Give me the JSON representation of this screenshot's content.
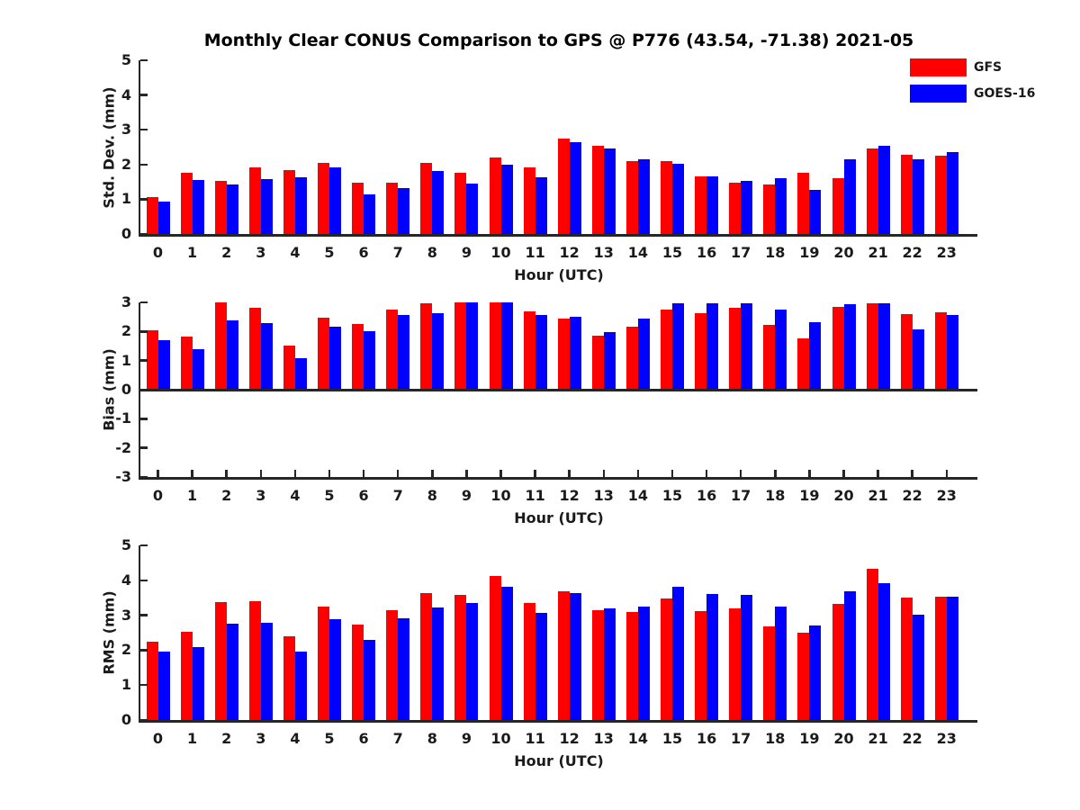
{
  "title": "Monthly Clear CONUS Comparison to GPS @ P776 (43.54, -71.38) 2021-05",
  "legend": {
    "position": "top-right",
    "entries": [
      {
        "label": "GFS",
        "color": "#ff0000"
      },
      {
        "label": "GOES-16",
        "color": "#0000ff"
      }
    ]
  },
  "colors": {
    "gfs": "#ff0000",
    "goes16": "#0000ff",
    "axis": "#262626",
    "title_text": "#000000",
    "background": "#ffffff"
  },
  "chart_data": [
    {
      "type": "bar",
      "ylabel": "Std. Dev. (mm)",
      "xlabel": "Hour (UTC)",
      "ylim": [
        0,
        5
      ],
      "yticks": [
        0,
        1,
        2,
        3,
        4,
        5
      ],
      "grid": false,
      "categories": [
        "0",
        "1",
        "2",
        "3",
        "4",
        "5",
        "6",
        "7",
        "8",
        "9",
        "10",
        "11",
        "12",
        "13",
        "14",
        "15",
        "16",
        "17",
        "18",
        "19",
        "20",
        "21",
        "22",
        "23"
      ],
      "series": [
        {
          "name": "GFS",
          "color": "#ff0000",
          "values": [
            1.05,
            1.75,
            1.52,
            1.93,
            1.85,
            2.05,
            1.47,
            1.48,
            2.05,
            1.75,
            2.2,
            1.92,
            2.75,
            2.53,
            2.1,
            2.1,
            1.65,
            1.47,
            1.42,
            1.76,
            1.6,
            2.46,
            2.28,
            2.26
          ]
        },
        {
          "name": "GOES-16",
          "color": "#0000ff",
          "values": [
            0.92,
            1.55,
            1.42,
            1.57,
            1.62,
            1.93,
            1.13,
            1.32,
            1.82,
            1.44,
            2.0,
            1.62,
            2.64,
            2.45,
            2.14,
            2.02,
            1.66,
            1.53,
            1.6,
            1.27,
            2.15,
            2.54,
            2.15,
            2.36
          ]
        }
      ]
    },
    {
      "type": "bar",
      "ylabel": "Bias (mm)",
      "xlabel": "Hour (UTC)",
      "ylim": [
        -3,
        3
      ],
      "yticks": [
        -3,
        -2,
        -1,
        0,
        1,
        2,
        3
      ],
      "grid": false,
      "categories": [
        "0",
        "1",
        "2",
        "3",
        "4",
        "5",
        "6",
        "7",
        "8",
        "9",
        "10",
        "11",
        "12",
        "13",
        "14",
        "15",
        "16",
        "17",
        "18",
        "19",
        "20",
        "21",
        "22",
        "23"
      ],
      "series": [
        {
          "name": "GFS",
          "color": "#ff0000",
          "values": [
            2.05,
            1.83,
            3.0,
            2.8,
            1.51,
            2.48,
            2.27,
            2.76,
            2.97,
            3.0,
            3.0,
            2.68,
            2.43,
            1.85,
            2.18,
            2.76,
            2.62,
            2.82,
            2.24,
            1.75,
            2.85,
            2.98,
            2.6,
            2.66
          ]
        },
        {
          "name": "GOES-16",
          "color": "#0000ff",
          "values": [
            1.7,
            1.38,
            2.39,
            2.28,
            1.07,
            2.15,
            2.0,
            2.58,
            2.64,
            3.0,
            3.0,
            2.56,
            2.5,
            1.97,
            2.45,
            2.98,
            2.98,
            2.98,
            2.76,
            2.33,
            2.93,
            2.98,
            2.07,
            2.56
          ]
        }
      ]
    },
    {
      "type": "bar",
      "ylabel": "RMS (mm)",
      "xlabel": "Hour (UTC)",
      "ylim": [
        0,
        5
      ],
      "yticks": [
        0,
        1,
        2,
        3,
        4,
        5
      ],
      "grid": false,
      "categories": [
        "0",
        "1",
        "2",
        "3",
        "4",
        "5",
        "6",
        "7",
        "8",
        "9",
        "10",
        "11",
        "12",
        "13",
        "14",
        "15",
        "16",
        "17",
        "18",
        "19",
        "20",
        "21",
        "22",
        "23"
      ],
      "series": [
        {
          "name": "GFS",
          "color": "#ff0000",
          "values": [
            2.25,
            2.52,
            3.37,
            3.39,
            2.39,
            3.24,
            2.72,
            3.15,
            3.63,
            3.58,
            4.12,
            3.34,
            3.68,
            3.14,
            3.09,
            3.49,
            3.12,
            3.2,
            2.69,
            2.49,
            3.32,
            4.34,
            3.5,
            3.52
          ]
        },
        {
          "name": "GOES-16",
          "color": "#0000ff",
          "values": [
            1.97,
            2.08,
            2.77,
            2.78,
            1.97,
            2.88,
            2.3,
            2.92,
            3.21,
            3.35,
            3.82,
            3.06,
            3.64,
            3.19,
            3.25,
            3.81,
            3.6,
            3.58,
            3.24,
            2.7,
            3.68,
            3.93,
            3.01,
            3.53
          ]
        }
      ]
    }
  ]
}
